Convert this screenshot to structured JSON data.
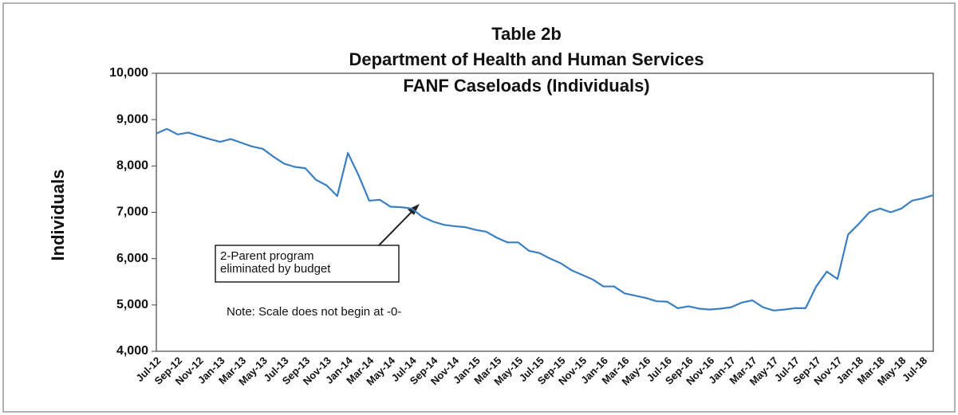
{
  "chart_data": {
    "type": "line",
    "title": "Table 2b",
    "subtitle": [
      "Department of Health and Human Services",
      "FANF Caseloads (Individuals)"
    ],
    "y_label": "Individuals",
    "categories": [
      "Jul-12",
      null,
      "Sep-12",
      null,
      "Nov-12",
      null,
      "Jan-13",
      null,
      "Mar-13",
      null,
      "May-13",
      null,
      "Jul-13",
      null,
      "Sep-13",
      null,
      "Nov-13",
      null,
      "Jan-14",
      null,
      "Mar-14",
      null,
      "May-14",
      null,
      "Jul-14",
      null,
      "Sep-14",
      null,
      "Nov-14",
      null,
      "Jan-15",
      null,
      "Mar-15",
      null,
      "May-15",
      null,
      "Jul-15",
      null,
      "Sep-15",
      null,
      "Nov-15",
      null,
      "Jan-16",
      null,
      "Mar-16",
      null,
      "May-16",
      null,
      "Jul-16",
      null,
      "Sep-16",
      null,
      "Nov-16",
      null,
      "Jan-17",
      null,
      "Mar-17",
      null,
      "May-17",
      null,
      "Jul-17",
      null,
      "Sep-17",
      null,
      "Nov-17",
      null,
      "Jan-18",
      null,
      "Mar-18",
      null,
      "May-18",
      null,
      "Jul-18",
      null
    ],
    "series": [
      {
        "name": "Individuals",
        "color": "#3a7fc1",
        "values": [
          8700,
          8800,
          8680,
          8720,
          8650,
          8580,
          8520,
          8580,
          8500,
          8420,
          8370,
          8200,
          8050,
          7980,
          7950,
          7700,
          7580,
          7350,
          8280,
          7800,
          7250,
          7270,
          7120,
          7110,
          7080,
          6900,
          6800,
          6730,
          6700,
          6680,
          6620,
          6580,
          6450,
          6350,
          6350,
          6170,
          6120,
          6000,
          5900,
          5750,
          5650,
          5550,
          5400,
          5400,
          5250,
          5200,
          5150,
          5080,
          5070,
          4930,
          4970,
          4920,
          4900,
          4920,
          4950,
          5050,
          5100,
          4950,
          4880,
          4900,
          4930,
          4930,
          5400,
          5720,
          5560,
          6520,
          6750,
          7000,
          7080,
          7000,
          7080,
          7250,
          7300,
          7370
        ]
      }
    ],
    "ylim": [
      4000,
      10000
    ],
    "yticks": [
      {
        "value": 4000,
        "label": "4,000"
      },
      {
        "value": 5000,
        "label": "5,000"
      },
      {
        "value": 6000,
        "label": "6,000"
      },
      {
        "value": 7000,
        "label": "7,000"
      },
      {
        "value": 8000,
        "label": "8,000"
      },
      {
        "value": 9000,
        "label": "9,000"
      },
      {
        "value": 10000,
        "label": "10,000"
      }
    ],
    "grid": false,
    "annotation": [
      "2-Parent program",
      "eliminated by budget"
    ],
    "note": "Note:  Scale does not begin at -0-"
  }
}
